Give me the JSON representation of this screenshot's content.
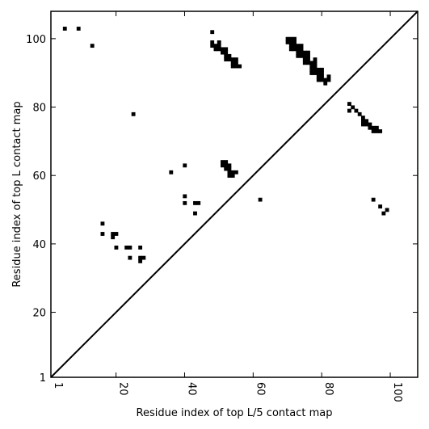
{
  "chart_data": {
    "type": "scatter",
    "title": "",
    "xlabel": "Residue index of top L/5 contact map",
    "ylabel": "Residue index of top L contact map",
    "xlim": [
      1,
      108
    ],
    "ylim": [
      1,
      108
    ],
    "x_ticks": [
      1,
      20,
      40,
      60,
      80,
      100
    ],
    "y_ticks": [
      1,
      20,
      40,
      60,
      80,
      100
    ],
    "x_tick_labels": [
      "1",
      "20",
      "40",
      "60",
      "80",
      "100"
    ],
    "y_tick_labels": [
      "1",
      "20",
      "40",
      "60",
      "80",
      "100"
    ],
    "grid": false,
    "colors": {
      "points": "#000000",
      "diagonal": "#000000",
      "background": "#ffffff"
    },
    "diagonal": {
      "from": [
        1,
        1
      ],
      "to": [
        108,
        108
      ]
    },
    "series": [
      {
        "points": [
          [
            5,
            103
          ],
          [
            9,
            103
          ],
          [
            13,
            98
          ],
          [
            48,
            102
          ],
          [
            48,
            99
          ],
          [
            48,
            98
          ],
          [
            49,
            98
          ],
          [
            49,
            97
          ],
          [
            50,
            99
          ],
          [
            50,
            98
          ],
          [
            50,
            97
          ],
          [
            51,
            97
          ],
          [
            51,
            96
          ],
          [
            52,
            97
          ],
          [
            52,
            96
          ],
          [
            52,
            95
          ],
          [
            52,
            94
          ],
          [
            53,
            95
          ],
          [
            53,
            94
          ],
          [
            54,
            94
          ],
          [
            54,
            93
          ],
          [
            54,
            92
          ],
          [
            55,
            94
          ],
          [
            55,
            93
          ],
          [
            55,
            92
          ],
          [
            56,
            92
          ],
          [
            70,
            100
          ],
          [
            70,
            99
          ],
          [
            71,
            100
          ],
          [
            71,
            99
          ],
          [
            71,
            98
          ],
          [
            71,
            97
          ],
          [
            72,
            100
          ],
          [
            72,
            99
          ],
          [
            72,
            98
          ],
          [
            72,
            97
          ],
          [
            73,
            98
          ],
          [
            73,
            97
          ],
          [
            73,
            96
          ],
          [
            73,
            95
          ],
          [
            74,
            98
          ],
          [
            74,
            97
          ],
          [
            74,
            96
          ],
          [
            74,
            95
          ],
          [
            75,
            96
          ],
          [
            75,
            95
          ],
          [
            75,
            94
          ],
          [
            75,
            93
          ],
          [
            76,
            96
          ],
          [
            76,
            95
          ],
          [
            76,
            94
          ],
          [
            76,
            93
          ],
          [
            77,
            93
          ],
          [
            77,
            92
          ],
          [
            77,
            91
          ],
          [
            77,
            90
          ],
          [
            78,
            94
          ],
          [
            78,
            93
          ],
          [
            78,
            92
          ],
          [
            78,
            91
          ],
          [
            78,
            90
          ],
          [
            79,
            91
          ],
          [
            79,
            90
          ],
          [
            79,
            89
          ],
          [
            79,
            88
          ],
          [
            80,
            91
          ],
          [
            80,
            90
          ],
          [
            80,
            89
          ],
          [
            80,
            88
          ],
          [
            81,
            87
          ],
          [
            81,
            88
          ],
          [
            82,
            89
          ],
          [
            82,
            88
          ],
          [
            88,
            81
          ],
          [
            88,
            79
          ],
          [
            89,
            80
          ],
          [
            90,
            79
          ],
          [
            91,
            78
          ],
          [
            92,
            77
          ],
          [
            92,
            76
          ],
          [
            92,
            75
          ],
          [
            93,
            76
          ],
          [
            93,
            75
          ],
          [
            94,
            75
          ],
          [
            94,
            74
          ],
          [
            95,
            74
          ],
          [
            95,
            73
          ],
          [
            96,
            74
          ],
          [
            96,
            73
          ],
          [
            97,
            73
          ],
          [
            25,
            78
          ],
          [
            36,
            61
          ],
          [
            40,
            63
          ],
          [
            40,
            54
          ],
          [
            40,
            52
          ],
          [
            43,
            52
          ],
          [
            44,
            52
          ],
          [
            43,
            49
          ],
          [
            51,
            64
          ],
          [
            51,
            63
          ],
          [
            52,
            64
          ],
          [
            52,
            63
          ],
          [
            52,
            62
          ],
          [
            53,
            63
          ],
          [
            53,
            62
          ],
          [
            53,
            61
          ],
          [
            53,
            60
          ],
          [
            54,
            61
          ],
          [
            54,
            60
          ],
          [
            55,
            61
          ],
          [
            62,
            53
          ],
          [
            16,
            46
          ],
          [
            16,
            43
          ],
          [
            19,
            43
          ],
          [
            19,
            42
          ],
          [
            20,
            43
          ],
          [
            20,
            39
          ],
          [
            23,
            39
          ],
          [
            24,
            39
          ],
          [
            24,
            36
          ],
          [
            27,
            39
          ],
          [
            27,
            36
          ],
          [
            27,
            35
          ],
          [
            28,
            36
          ],
          [
            95,
            53
          ],
          [
            97,
            51
          ],
          [
            98,
            49
          ],
          [
            99,
            50
          ]
        ]
      }
    ]
  }
}
